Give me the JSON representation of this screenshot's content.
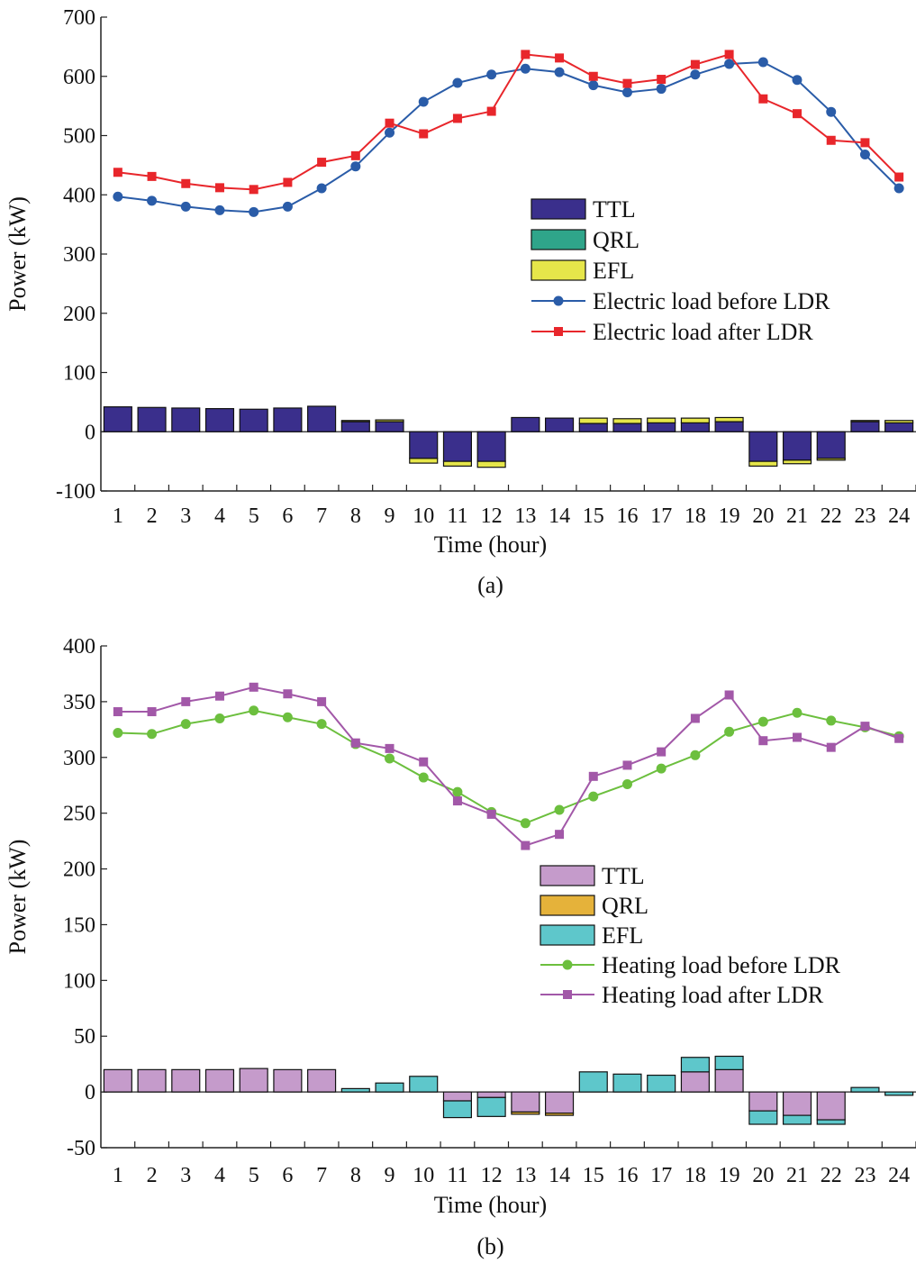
{
  "chart_data": [
    {
      "panel": "a",
      "caption": "(a)",
      "type": "bar",
      "xlabel": "Time (hour)",
      "ylabel": "Power (kW)",
      "ylim": [
        -100,
        700
      ],
      "yticks": [
        -100,
        0,
        100,
        200,
        300,
        400,
        500,
        600,
        700
      ],
      "categories": [
        "1",
        "2",
        "3",
        "4",
        "5",
        "6",
        "7",
        "8",
        "9",
        "10",
        "11",
        "12",
        "13",
        "14",
        "15",
        "16",
        "17",
        "18",
        "19",
        "20",
        "21",
        "22",
        "23",
        "24"
      ],
      "legend": {
        "position": "center-right"
      },
      "series": [
        {
          "name": "TTL",
          "kind": "bar",
          "color": "#3a2f8c",
          "values": [
            42,
            41,
            40,
            39,
            38,
            40,
            43,
            17,
            17,
            -45,
            -50,
            -50,
            24,
            23,
            14,
            14,
            15,
            15,
            17,
            -50,
            -48,
            -45,
            17,
            15
          ]
        },
        {
          "name": "QRL",
          "kind": "bar",
          "color": "#2fa58a",
          "values": [
            0,
            0,
            0,
            0,
            0,
            0,
            0,
            0,
            0,
            0,
            0,
            0,
            0,
            0,
            0,
            0,
            0,
            0,
            0,
            0,
            0,
            0,
            0,
            0
          ]
        },
        {
          "name": "EFL",
          "kind": "bar",
          "color": "#e6e64a",
          "values": [
            0,
            0,
            0,
            0,
            0,
            0,
            0,
            2,
            3,
            -8,
            -8,
            -10,
            0,
            0,
            9,
            8,
            8,
            8,
            7,
            -8,
            -6,
            -3,
            2,
            4
          ]
        },
        {
          "name": "Electric load before LDR",
          "kind": "line",
          "marker": "circle",
          "color": "#2a5ca8",
          "values": [
            397,
            390,
            380,
            374,
            371,
            380,
            411,
            448,
            505,
            557,
            589,
            603,
            613,
            607,
            585,
            573,
            579,
            603,
            621,
            624,
            594,
            540,
            468,
            411
          ]
        },
        {
          "name": "Electric load after LDR",
          "kind": "line",
          "marker": "square",
          "color": "#e8262b",
          "values": [
            438,
            431,
            419,
            412,
            409,
            421,
            455,
            466,
            521,
            503,
            529,
            541,
            637,
            631,
            600,
            588,
            595,
            620,
            637,
            562,
            537,
            492,
            488,
            430
          ]
        }
      ]
    },
    {
      "panel": "b",
      "caption": "(b)",
      "type": "bar",
      "xlabel": "Time (hour)",
      "ylabel": "Power (kW)",
      "ylim": [
        -50,
        400
      ],
      "yticks": [
        -50,
        0,
        50,
        100,
        150,
        200,
        250,
        300,
        350,
        400
      ],
      "categories": [
        "1",
        "2",
        "3",
        "4",
        "5",
        "6",
        "7",
        "8",
        "9",
        "10",
        "11",
        "12",
        "13",
        "14",
        "15",
        "16",
        "17",
        "18",
        "19",
        "20",
        "21",
        "22",
        "23",
        "24"
      ],
      "legend": {
        "position": "center-right"
      },
      "series": [
        {
          "name": "TTL",
          "kind": "bar",
          "color": "#c59bcb",
          "values": [
            20,
            20,
            20,
            20,
            21,
            20,
            20,
            0,
            0,
            0,
            -8,
            -5,
            -18,
            -19,
            0,
            0,
            0,
            18,
            20,
            -17,
            -21,
            -25,
            0,
            0
          ]
        },
        {
          "name": "QRL",
          "kind": "bar",
          "color": "#e5b23a",
          "values": [
            0,
            0,
            0,
            0,
            0,
            0,
            0,
            0,
            0,
            0,
            0,
            0,
            -2,
            -2,
            0,
            0,
            0,
            0,
            0,
            0,
            0,
            0,
            0,
            0
          ]
        },
        {
          "name": "EFL",
          "kind": "bar",
          "color": "#5ec7cb",
          "values": [
            0,
            0,
            0,
            0,
            0,
            0,
            0,
            3,
            8,
            14,
            -15,
            -17,
            0,
            0,
            18,
            16,
            15,
            13,
            12,
            -12,
            -8,
            -4,
            4,
            -3
          ]
        },
        {
          "name": "Heating load before LDR",
          "kind": "line",
          "marker": "circle",
          "color": "#6cbf3e",
          "values": [
            322,
            321,
            330,
            335,
            342,
            336,
            330,
            312,
            299,
            282,
            269,
            251,
            241,
            253,
            265,
            276,
            290,
            302,
            323,
            332,
            340,
            333,
            327,
            319
          ]
        },
        {
          "name": "Heating load after LDR",
          "kind": "line",
          "marker": "square",
          "color": "#a258a8",
          "values": [
            341,
            341,
            350,
            355,
            363,
            357,
            350,
            313,
            308,
            296,
            261,
            249,
            221,
            231,
            283,
            293,
            305,
            335,
            356,
            315,
            318,
            309,
            328,
            317
          ]
        }
      ]
    }
  ]
}
